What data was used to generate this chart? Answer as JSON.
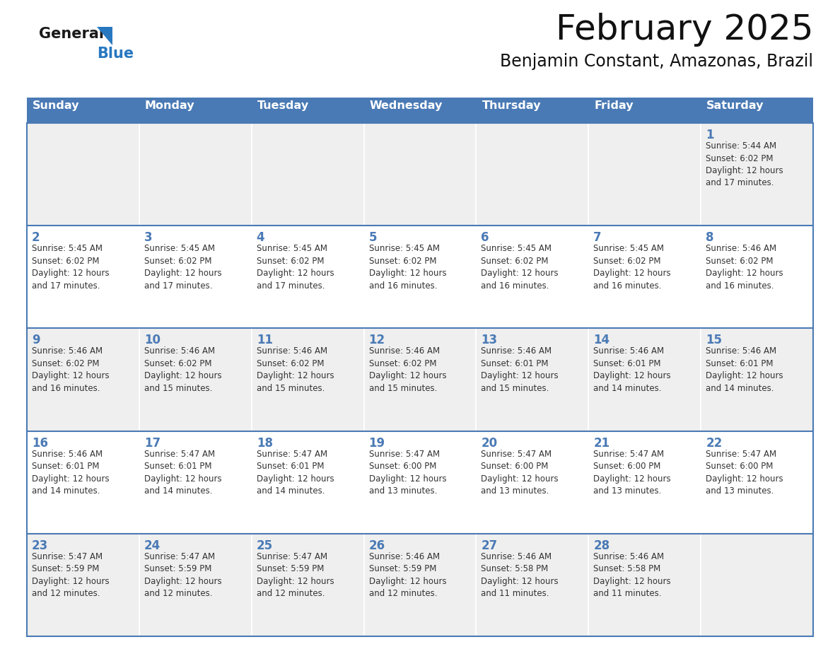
{
  "title": "February 2025",
  "subtitle": "Benjamin Constant, Amazonas, Brazil",
  "days_of_week": [
    "Sunday",
    "Monday",
    "Tuesday",
    "Wednesday",
    "Thursday",
    "Friday",
    "Saturday"
  ],
  "header_bg": "#4a7ab5",
  "header_text_color": "#ffffff",
  "cell_bg_odd": "#efefef",
  "cell_bg_even": "#ffffff",
  "cell_border_color": "#4a7ab5",
  "day_number_color": "#4a7ab5",
  "text_color": "#333333",
  "logo_general_color": "#1a1a1a",
  "logo_blue_color": "#2878c0",
  "weeks": [
    [
      {
        "day": null,
        "info": null
      },
      {
        "day": null,
        "info": null
      },
      {
        "day": null,
        "info": null
      },
      {
        "day": null,
        "info": null
      },
      {
        "day": null,
        "info": null
      },
      {
        "day": null,
        "info": null
      },
      {
        "day": 1,
        "info": "Sunrise: 5:44 AM\nSunset: 6:02 PM\nDaylight: 12 hours\nand 17 minutes."
      }
    ],
    [
      {
        "day": 2,
        "info": "Sunrise: 5:45 AM\nSunset: 6:02 PM\nDaylight: 12 hours\nand 17 minutes."
      },
      {
        "day": 3,
        "info": "Sunrise: 5:45 AM\nSunset: 6:02 PM\nDaylight: 12 hours\nand 17 minutes."
      },
      {
        "day": 4,
        "info": "Sunrise: 5:45 AM\nSunset: 6:02 PM\nDaylight: 12 hours\nand 17 minutes."
      },
      {
        "day": 5,
        "info": "Sunrise: 5:45 AM\nSunset: 6:02 PM\nDaylight: 12 hours\nand 16 minutes."
      },
      {
        "day": 6,
        "info": "Sunrise: 5:45 AM\nSunset: 6:02 PM\nDaylight: 12 hours\nand 16 minutes."
      },
      {
        "day": 7,
        "info": "Sunrise: 5:45 AM\nSunset: 6:02 PM\nDaylight: 12 hours\nand 16 minutes."
      },
      {
        "day": 8,
        "info": "Sunrise: 5:46 AM\nSunset: 6:02 PM\nDaylight: 12 hours\nand 16 minutes."
      }
    ],
    [
      {
        "day": 9,
        "info": "Sunrise: 5:46 AM\nSunset: 6:02 PM\nDaylight: 12 hours\nand 16 minutes."
      },
      {
        "day": 10,
        "info": "Sunrise: 5:46 AM\nSunset: 6:02 PM\nDaylight: 12 hours\nand 15 minutes."
      },
      {
        "day": 11,
        "info": "Sunrise: 5:46 AM\nSunset: 6:02 PM\nDaylight: 12 hours\nand 15 minutes."
      },
      {
        "day": 12,
        "info": "Sunrise: 5:46 AM\nSunset: 6:02 PM\nDaylight: 12 hours\nand 15 minutes."
      },
      {
        "day": 13,
        "info": "Sunrise: 5:46 AM\nSunset: 6:01 PM\nDaylight: 12 hours\nand 15 minutes."
      },
      {
        "day": 14,
        "info": "Sunrise: 5:46 AM\nSunset: 6:01 PM\nDaylight: 12 hours\nand 14 minutes."
      },
      {
        "day": 15,
        "info": "Sunrise: 5:46 AM\nSunset: 6:01 PM\nDaylight: 12 hours\nand 14 minutes."
      }
    ],
    [
      {
        "day": 16,
        "info": "Sunrise: 5:46 AM\nSunset: 6:01 PM\nDaylight: 12 hours\nand 14 minutes."
      },
      {
        "day": 17,
        "info": "Sunrise: 5:47 AM\nSunset: 6:01 PM\nDaylight: 12 hours\nand 14 minutes."
      },
      {
        "day": 18,
        "info": "Sunrise: 5:47 AM\nSunset: 6:01 PM\nDaylight: 12 hours\nand 14 minutes."
      },
      {
        "day": 19,
        "info": "Sunrise: 5:47 AM\nSunset: 6:00 PM\nDaylight: 12 hours\nand 13 minutes."
      },
      {
        "day": 20,
        "info": "Sunrise: 5:47 AM\nSunset: 6:00 PM\nDaylight: 12 hours\nand 13 minutes."
      },
      {
        "day": 21,
        "info": "Sunrise: 5:47 AM\nSunset: 6:00 PM\nDaylight: 12 hours\nand 13 minutes."
      },
      {
        "day": 22,
        "info": "Sunrise: 5:47 AM\nSunset: 6:00 PM\nDaylight: 12 hours\nand 13 minutes."
      }
    ],
    [
      {
        "day": 23,
        "info": "Sunrise: 5:47 AM\nSunset: 5:59 PM\nDaylight: 12 hours\nand 12 minutes."
      },
      {
        "day": 24,
        "info": "Sunrise: 5:47 AM\nSunset: 5:59 PM\nDaylight: 12 hours\nand 12 minutes."
      },
      {
        "day": 25,
        "info": "Sunrise: 5:47 AM\nSunset: 5:59 PM\nDaylight: 12 hours\nand 12 minutes."
      },
      {
        "day": 26,
        "info": "Sunrise: 5:46 AM\nSunset: 5:59 PM\nDaylight: 12 hours\nand 12 minutes."
      },
      {
        "day": 27,
        "info": "Sunrise: 5:46 AM\nSunset: 5:58 PM\nDaylight: 12 hours\nand 11 minutes."
      },
      {
        "day": 28,
        "info": "Sunrise: 5:46 AM\nSunset: 5:58 PM\nDaylight: 12 hours\nand 11 minutes."
      },
      {
        "day": null,
        "info": null
      }
    ]
  ]
}
